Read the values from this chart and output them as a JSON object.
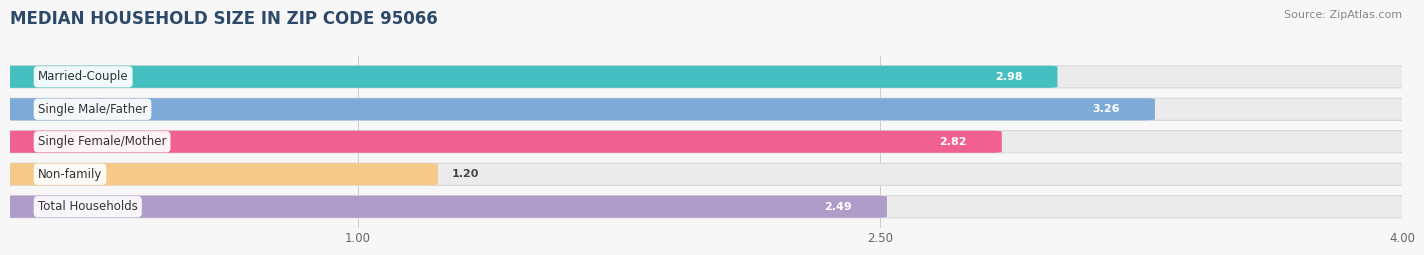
{
  "title": "MEDIAN HOUSEHOLD SIZE IN ZIP CODE 95066",
  "source": "Source: ZipAtlas.com",
  "categories": [
    "Married-Couple",
    "Single Male/Father",
    "Single Female/Mother",
    "Non-family",
    "Total Households"
  ],
  "values": [
    2.98,
    3.26,
    2.82,
    1.2,
    2.49
  ],
  "bar_colors": [
    "#45bfbf",
    "#7eaad8",
    "#f06090",
    "#f5c98a",
    "#b09cc8"
  ],
  "bar_bg_color": "#ebebeb",
  "xmin": 0.0,
  "xmax": 4.0,
  "xticks": [
    1.0,
    2.5,
    4.0
  ],
  "xtick_labels": [
    "1.00",
    "2.50",
    "4.00"
  ],
  "label_fontsize": 8.5,
  "value_fontsize": 8,
  "title_fontsize": 12,
  "bar_height": 0.62,
  "bar_gap": 0.18,
  "background_color": "#f7f7f7",
  "title_color": "#2d4a6b",
  "source_color": "#888888"
}
